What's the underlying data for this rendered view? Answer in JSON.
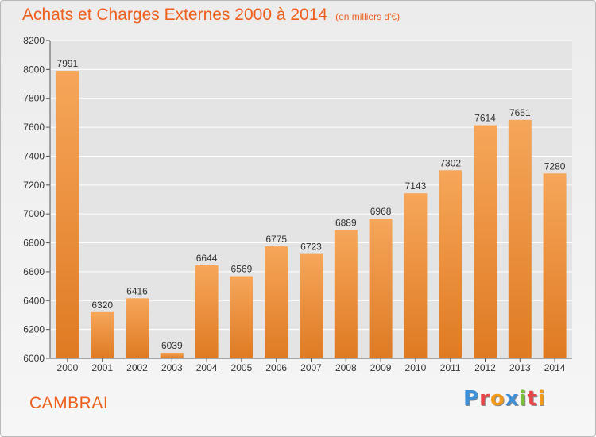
{
  "title": "Achats et Charges Externes 2000 à 2014",
  "subtitle": "(en milliers d'€)",
  "city": "CAMBRAI",
  "logo": {
    "text": "Proxiti",
    "letters": [
      {
        "char": "P",
        "color": "#3f8fd6"
      },
      {
        "char": "r",
        "color": "#e8464a"
      },
      {
        "char": "o",
        "color": "#f39a1a"
      },
      {
        "char": "x",
        "color": "#3f8fd6"
      },
      {
        "char": "i",
        "color": "#7cbf3a"
      },
      {
        "char": "t",
        "color": "#e8464a"
      },
      {
        "char": "i",
        "color": "#f39a1a"
      }
    ]
  },
  "colors": {
    "bar_top": "#f6a65a",
    "bar_bottom": "#df7a22",
    "accent": "#ef5f1c",
    "grid": "#ffffff",
    "axis": "#555555"
  },
  "chart_data": {
    "type": "bar",
    "title": "Achats et Charges Externes 2000 à 2014",
    "subtitle": "(en milliers d'€)",
    "xlabel": "",
    "ylabel": "",
    "ylim": [
      6000,
      8200
    ],
    "yticks": [
      6000,
      6200,
      6400,
      6600,
      6800,
      7000,
      7200,
      7400,
      7600,
      7800,
      8000,
      8200
    ],
    "grid": true,
    "categories": [
      "2000",
      "2001",
      "2002",
      "2003",
      "2004",
      "2005",
      "2006",
      "2007",
      "2008",
      "2009",
      "2010",
      "2011",
      "2012",
      "2013",
      "2014"
    ],
    "values": [
      7991,
      6320,
      6416,
      6039,
      6644,
      6569,
      6775,
      6723,
      6889,
      6968,
      7143,
      7302,
      7614,
      7651,
      7280
    ]
  }
}
